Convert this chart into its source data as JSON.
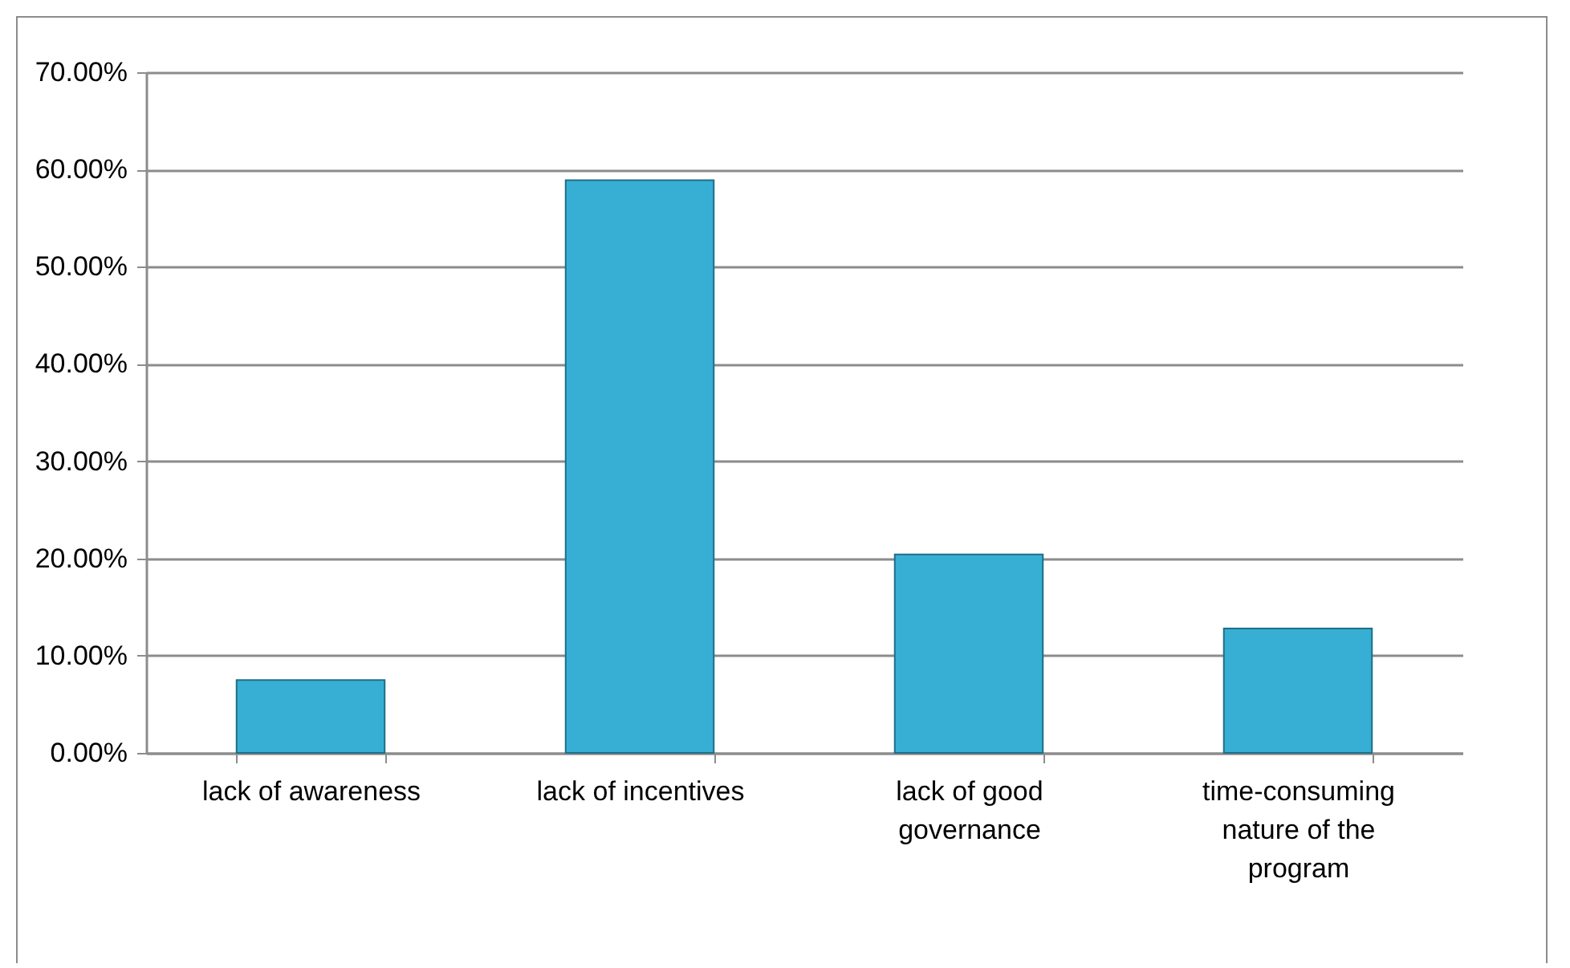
{
  "chart_data": {
    "type": "bar",
    "categories": [
      "lack of awareness",
      "lack of incentives",
      "lack of good governance",
      "time-consuming nature  of the program"
    ],
    "values": [
      7.5,
      58.9,
      20.4,
      12.8
    ],
    "color": "#37afd4",
    "ylim": [
      0,
      70
    ],
    "yticks": [
      {
        "value": 0,
        "label": "0.00%"
      },
      {
        "value": 10,
        "label": "10.00%"
      },
      {
        "value": 20,
        "label": "20.00%"
      },
      {
        "value": 30,
        "label": "30.00%"
      },
      {
        "value": 40,
        "label": "40.00%"
      },
      {
        "value": 50,
        "label": "50.00%"
      },
      {
        "value": 60,
        "label": "60.00%"
      },
      {
        "value": 70,
        "label": "70.00%"
      }
    ],
    "grid": "y"
  }
}
